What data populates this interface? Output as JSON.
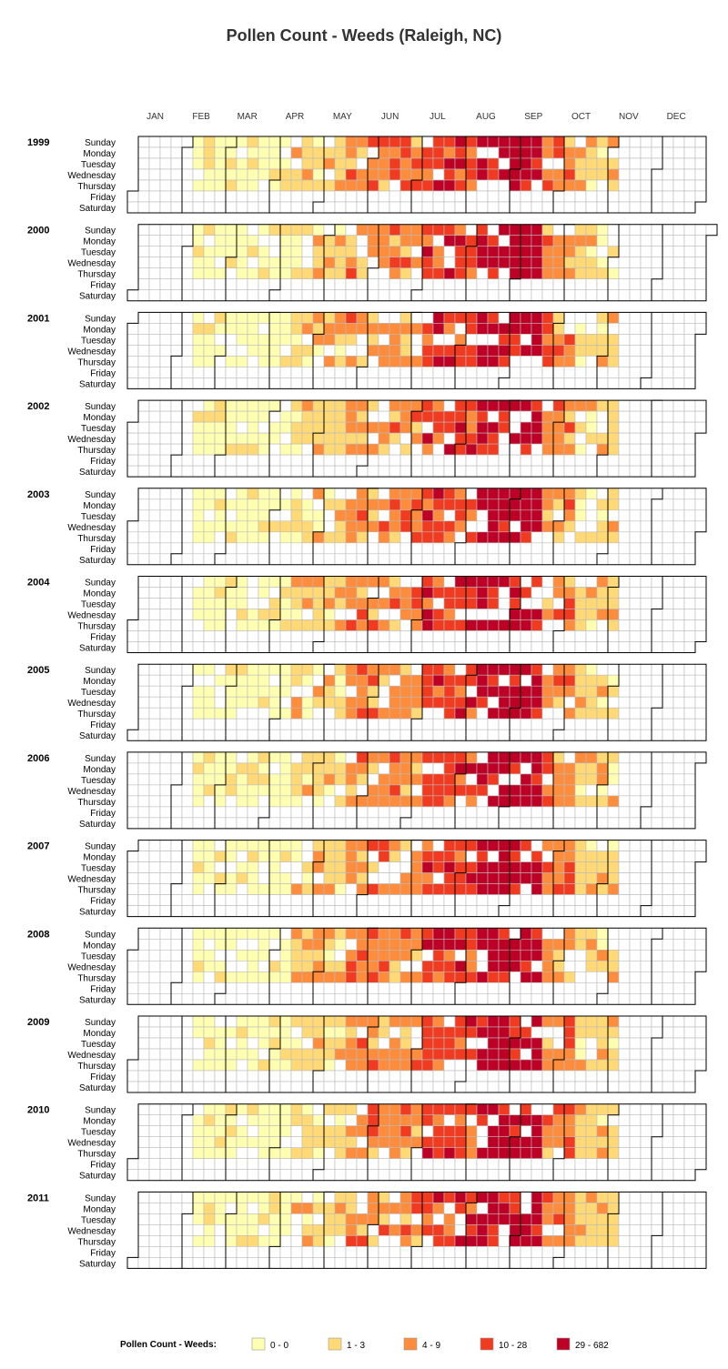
{
  "chart_data": {
    "type": "heatmap",
    "title": "Pollen Count - Weeds  (Raleigh, NC)",
    "months": [
      "JAN",
      "FEB",
      "MAR",
      "APR",
      "MAY",
      "JUN",
      "JUL",
      "AUG",
      "SEP",
      "OCT",
      "NOV",
      "DEC"
    ],
    "weekdays": [
      "Sunday",
      "Monday",
      "Tuesday",
      "Wednesday",
      "Thursday",
      "Friday",
      "Saturday"
    ],
    "years": [
      "1999",
      "2000",
      "2001",
      "2002",
      "2003",
      "2004",
      "2005",
      "2006",
      "2007",
      "2008",
      "2009",
      "2010",
      "2011"
    ],
    "data_days": [
      "Sunday",
      "Monday",
      "Tuesday",
      "Wednesday",
      "Thursday"
    ],
    "season_weeks": [
      6,
      44
    ],
    "week_level_profile": [
      {
        "weeks": [
          6,
          14
        ],
        "level": 0
      },
      {
        "weeks": [
          15,
          19
        ],
        "level": 1
      },
      {
        "weeks": [
          20,
          26
        ],
        "level": 2
      },
      {
        "weeks": [
          27,
          31
        ],
        "level": 3
      },
      {
        "weeks": [
          32,
          37
        ],
        "level": 4
      },
      {
        "weeks": [
          38,
          40
        ],
        "level": 2
      },
      {
        "weeks": [
          41,
          44
        ],
        "level": 1
      }
    ],
    "legend": {
      "title": "Pollen Count - Weeds:",
      "bins": [
        {
          "label": "0 - 0",
          "color": "#FFFFB2"
        },
        {
          "label": "1 - 3",
          "color": "#FED976"
        },
        {
          "label": "4 - 9",
          "color": "#FD8D3C"
        },
        {
          "label": "10 - 28",
          "color": "#F03B20"
        },
        {
          "label": "29 - 682",
          "color": "#BD0026"
        }
      ]
    },
    "grid_color": "#BBBBBB",
    "outline_color": "#000000"
  }
}
